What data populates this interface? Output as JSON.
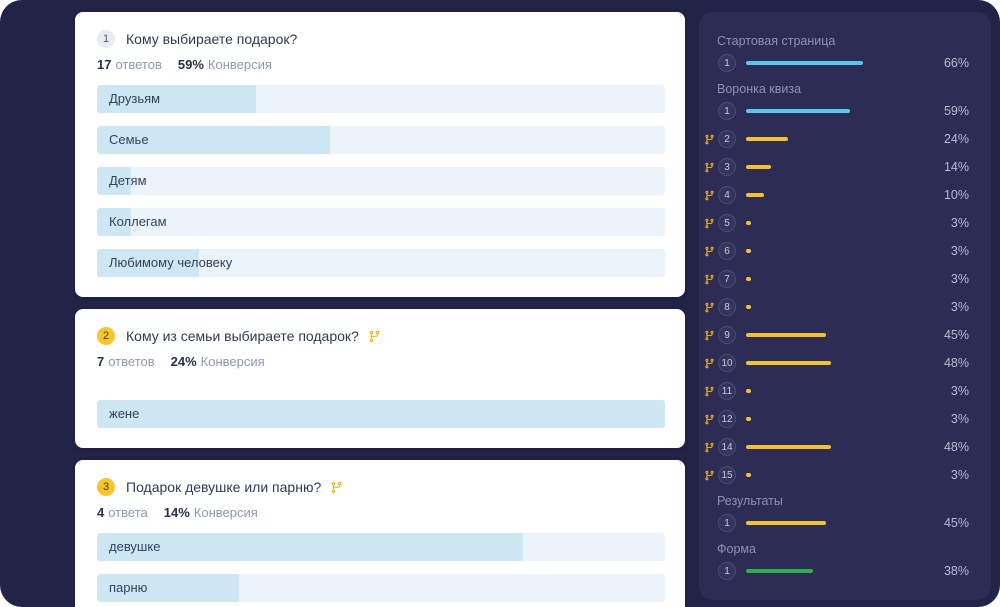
{
  "colors": {
    "window_bg": "#232247",
    "sidebar_bg": "#2D2C55",
    "card_bg": "#FFFFFF",
    "answer_track": "#EBF4FA",
    "answer_fill": "#CEE7F4",
    "accent_cyan": "#58C7E9",
    "accent_yellow": "#F2C232",
    "accent_green": "#2FAE52",
    "branch_icon": "#EFB32A"
  },
  "questions": [
    {
      "number": "1",
      "chip_color": "gray",
      "branch": false,
      "title": "Кому выбираете подарок?",
      "answers_count": "17",
      "answers_label": "ответов",
      "conversion_value": "59%",
      "conversion_label": "Конверсия",
      "answers_gap_lg": false,
      "answers": [
        {
          "label": "Друзьям",
          "pct": 28
        },
        {
          "label": "Семье",
          "pct": 41
        },
        {
          "label": "Детям",
          "pct": 6
        },
        {
          "label": "Коллегам",
          "pct": 6
        },
        {
          "label": "Любимому человеку",
          "pct": 18
        }
      ]
    },
    {
      "number": "2",
      "chip_color": "yellow",
      "branch": true,
      "title": "Кому из семьи выбираете подарок?",
      "answers_count": "7",
      "answers_label": "ответов",
      "conversion_value": "24%",
      "conversion_label": "Конверсия",
      "answers_gap_lg": true,
      "answers": [
        {
          "label": "жене",
          "pct": 100
        }
      ]
    },
    {
      "number": "3",
      "chip_color": "yellow",
      "branch": true,
      "title": "Подарок девушке или парню?",
      "answers_count": "4",
      "answers_label": "ответа",
      "conversion_value": "14%",
      "conversion_label": "Конверсия",
      "answers_gap_lg": false,
      "answers": [
        {
          "label": "девушке",
          "pct": 75
        },
        {
          "label": "парню",
          "pct": 25
        }
      ]
    }
  ],
  "sidebar": {
    "groups": [
      {
        "title": "Стартовая страница",
        "rows": [
          {
            "num": "1",
            "pct": 66,
            "pct_label": "66%",
            "color": "#58C7E9",
            "branch": false
          }
        ]
      },
      {
        "title": "Воронка квиза",
        "rows": [
          {
            "num": "1",
            "pct": 59,
            "pct_label": "59%",
            "color": "#58C7E9",
            "branch": false
          },
          {
            "num": "2",
            "pct": 24,
            "pct_label": "24%",
            "color": "#F2C232",
            "branch": true
          },
          {
            "num": "3",
            "pct": 14,
            "pct_label": "14%",
            "color": "#F2C232",
            "branch": true
          },
          {
            "num": "4",
            "pct": 10,
            "pct_label": "10%",
            "color": "#F2C232",
            "branch": true
          },
          {
            "num": "5",
            "pct": 3,
            "pct_label": "3%",
            "color": "#F2C232",
            "branch": true
          },
          {
            "num": "6",
            "pct": 3,
            "pct_label": "3%",
            "color": "#F2C232",
            "branch": true
          },
          {
            "num": "7",
            "pct": 3,
            "pct_label": "3%",
            "color": "#F2C232",
            "branch": true
          },
          {
            "num": "8",
            "pct": 3,
            "pct_label": "3%",
            "color": "#F2C232",
            "branch": true
          },
          {
            "num": "9",
            "pct": 45,
            "pct_label": "45%",
            "color": "#F2C232",
            "branch": true
          },
          {
            "num": "10",
            "pct": 48,
            "pct_label": "48%",
            "color": "#F2C232",
            "branch": true
          },
          {
            "num": "11",
            "pct": 3,
            "pct_label": "3%",
            "color": "#F2C232",
            "branch": true
          },
          {
            "num": "12",
            "pct": 3,
            "pct_label": "3%",
            "color": "#F2C232",
            "branch": true
          },
          {
            "num": "14",
            "pct": 48,
            "pct_label": "48%",
            "color": "#F2C232",
            "branch": true
          },
          {
            "num": "15",
            "pct": 3,
            "pct_label": "3%",
            "color": "#F2C232",
            "branch": true
          }
        ]
      },
      {
        "title": "Результаты",
        "rows": [
          {
            "num": "1",
            "pct": 45,
            "pct_label": "45%",
            "color": "#F2C232",
            "branch": false
          }
        ]
      },
      {
        "title": "Форма",
        "rows": [
          {
            "num": "1",
            "pct": 38,
            "pct_label": "38%",
            "color": "#2FAE52",
            "branch": false
          }
        ]
      }
    ]
  }
}
